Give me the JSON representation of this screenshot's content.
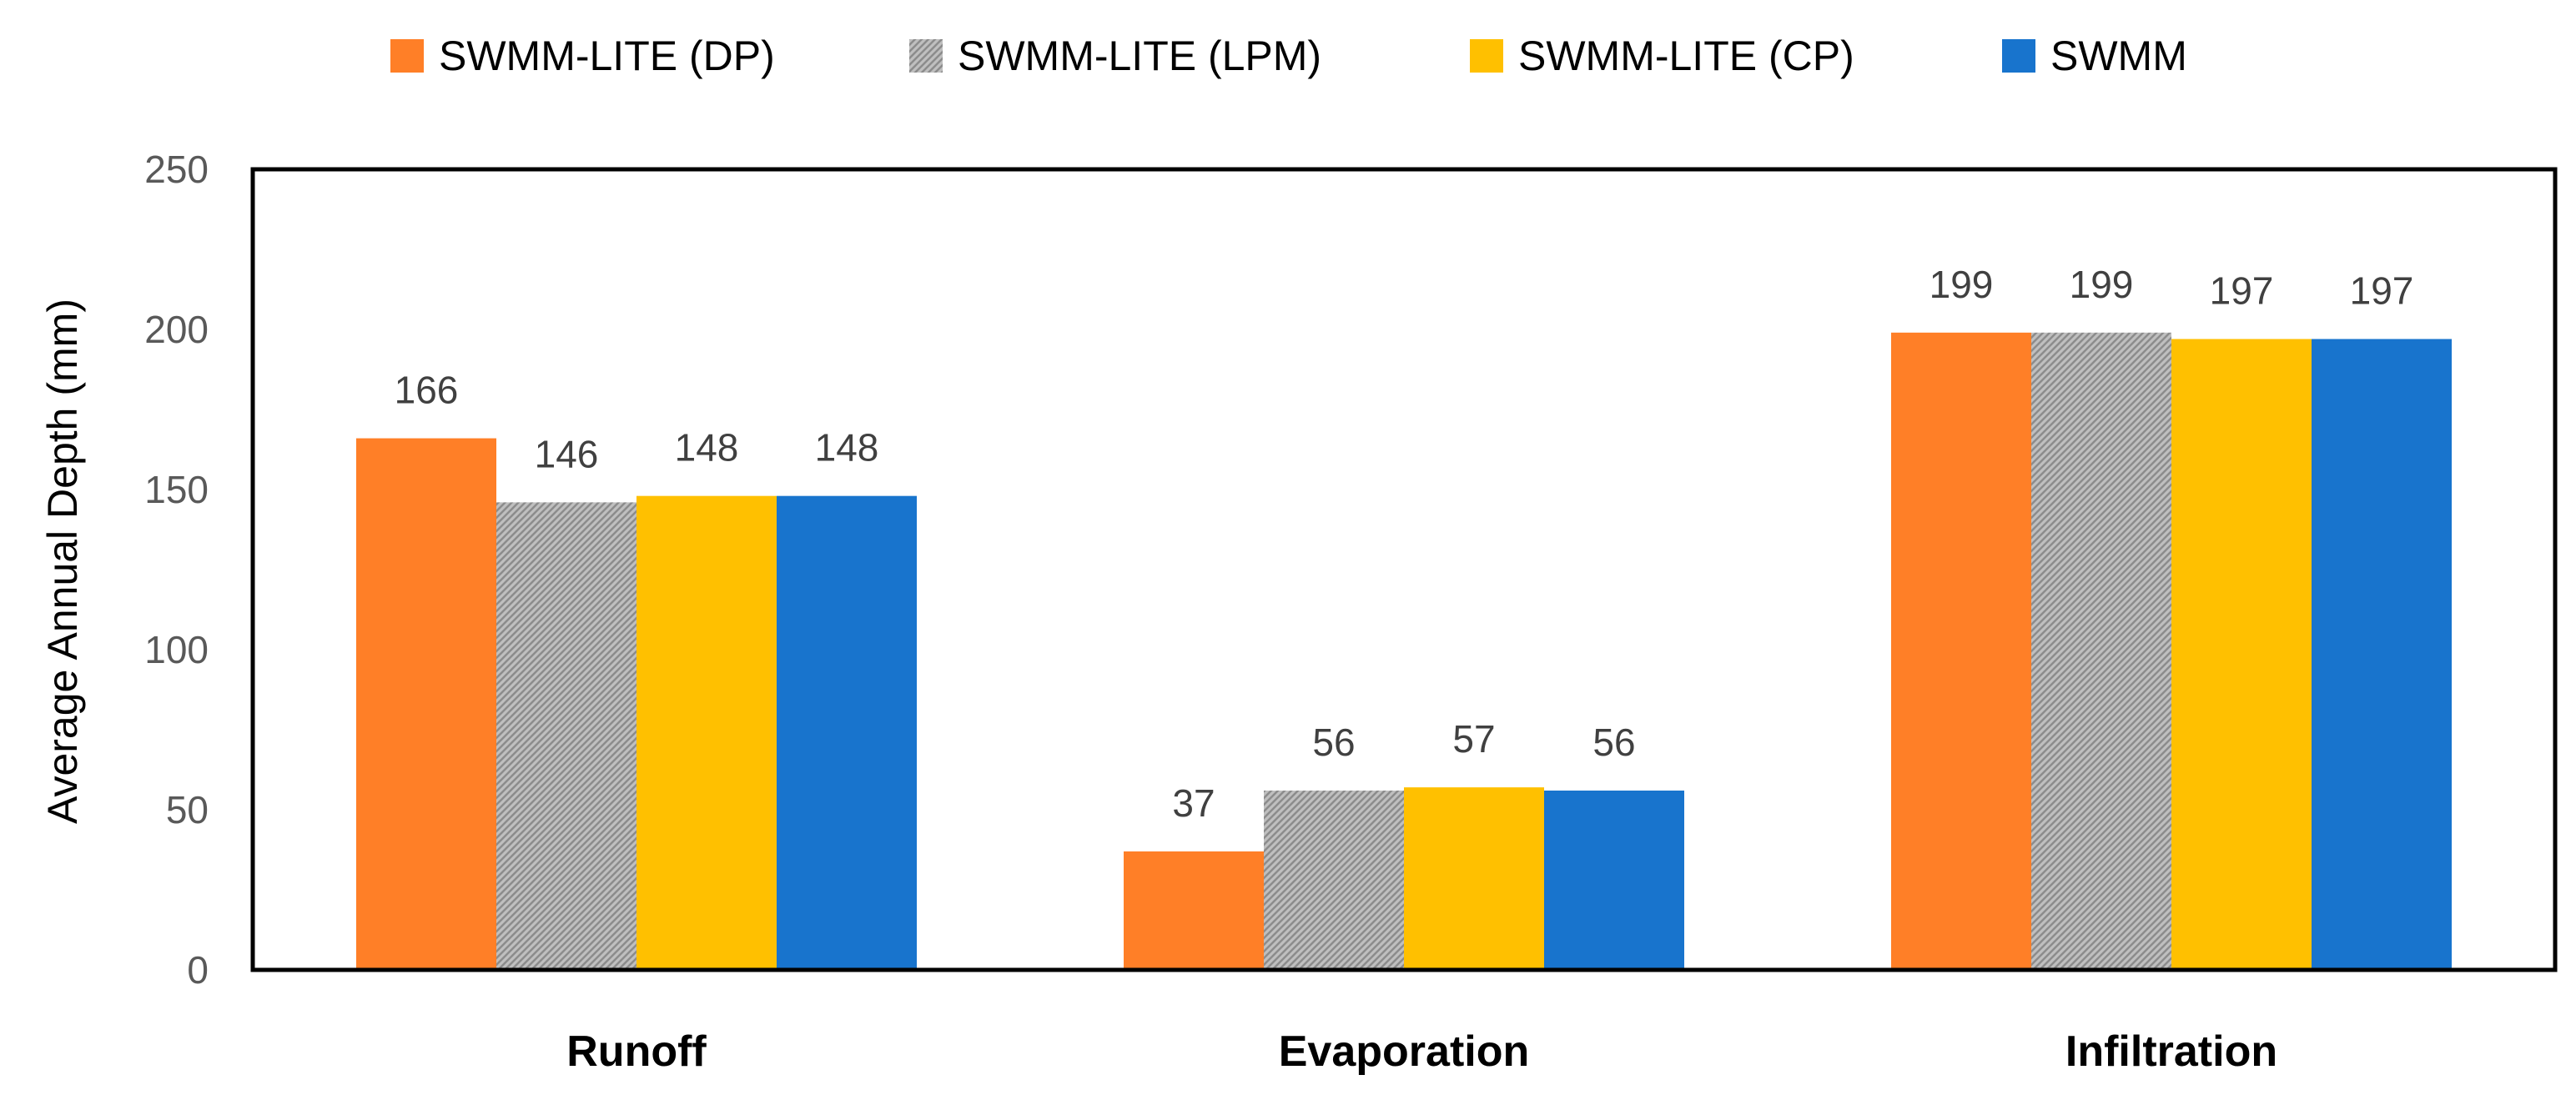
{
  "chart_data": {
    "type": "bar",
    "title": "",
    "xlabel": "",
    "ylabel": "Average Annual Depth (mm)",
    "ylim": [
      0,
      250
    ],
    "yticks": [
      0,
      50,
      100,
      150,
      200,
      250
    ],
    "grid": false,
    "legend_position": "top",
    "categories": [
      "Runoff",
      "Evaporation",
      "Infiltration"
    ],
    "series": [
      {
        "name": "SWMM-LITE (DP)",
        "color": "#FF7F27",
        "pattern": "solid",
        "values": [
          166,
          37,
          199
        ]
      },
      {
        "name": "SWMM-LITE (LPM)",
        "color": "#A6A6A6",
        "pattern": "hatched",
        "values": [
          146,
          56,
          199
        ]
      },
      {
        "name": "SWMM-LITE (CP)",
        "color": "#FFC000",
        "pattern": "solid",
        "values": [
          148,
          57,
          197
        ]
      },
      {
        "name": "SWMM",
        "color": "#1874CD",
        "pattern": "solid",
        "values": [
          148,
          56,
          197
        ]
      }
    ]
  }
}
